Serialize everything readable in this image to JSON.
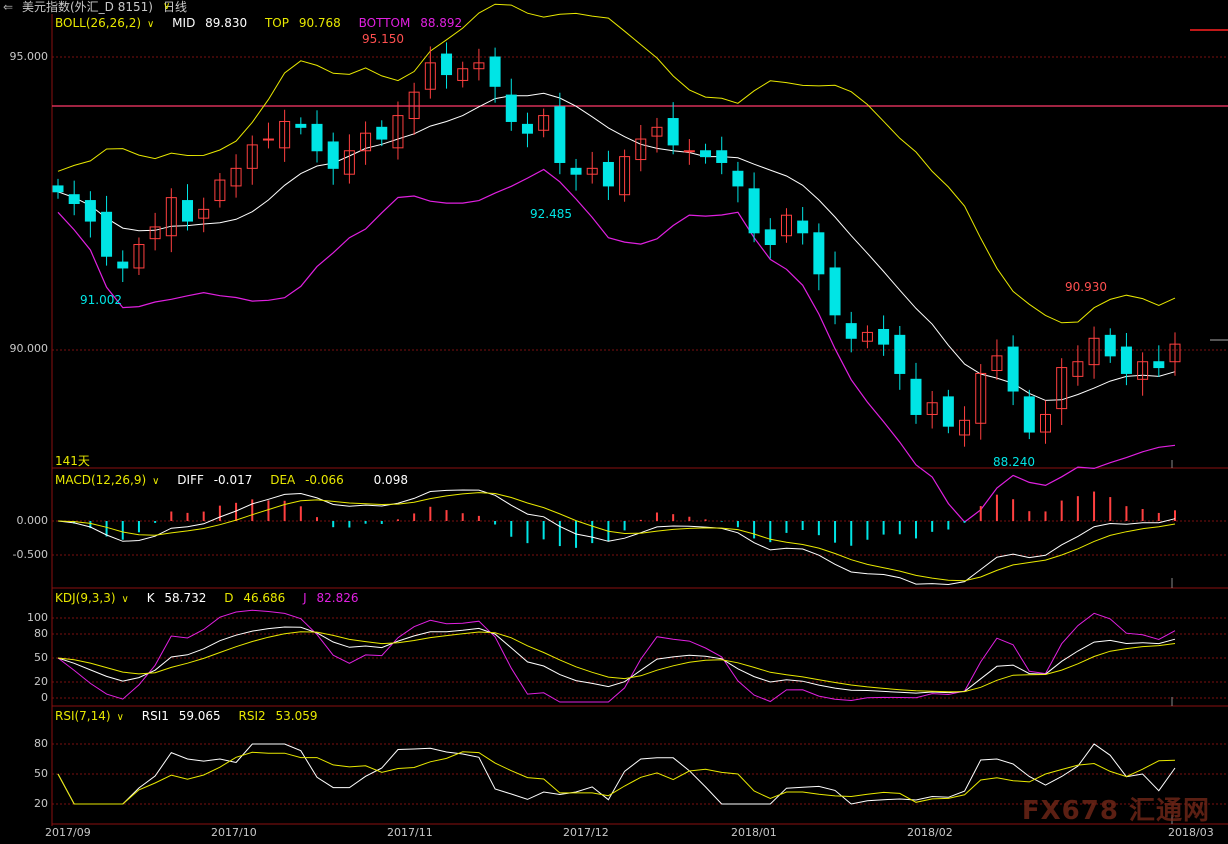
{
  "window": {
    "title_icon": "back-arrow-icon",
    "title": "美元指数(外汇_D 8151)",
    "period": "日线",
    "period_dropdown_icon": "chevron-down-icon"
  },
  "boll": {
    "label": "BOLL(26,26,2)",
    "mid_label": "MID",
    "mid_value": "89.830",
    "top_label": "TOP",
    "top_value": "90.768",
    "bottom_label": "BOTTOM",
    "bottom_value": "88.892",
    "colors": {
      "mid": "#ffffff",
      "top": "#e8e800",
      "bottom": "#e020e0"
    }
  },
  "main_axis": {
    "ticks": [
      "95.000",
      "90.000"
    ],
    "tick_values": [
      95.0,
      90.0
    ]
  },
  "annotations": {
    "high_1": "95.150",
    "low_1": "91.002",
    "low_2": "92.485",
    "low_3": "88.240",
    "high_2": "90.930",
    "days": "141天"
  },
  "macd": {
    "label": "MACD(12,26,9)",
    "diff_label": "DIFF",
    "diff_value": "-0.017",
    "dea_label": "DEA",
    "dea_value": "-0.066",
    "macd_value": "0.098",
    "ticks": [
      "0.000",
      "-0.500"
    ]
  },
  "kdj": {
    "label": "KDJ(9,3,3)",
    "k_label": "K",
    "k_value": "58.732",
    "d_label": "D",
    "d_value": "46.686",
    "j_label": "J",
    "j_value": "82.826",
    "ticks": [
      "100",
      "80",
      "50",
      "20",
      "0"
    ]
  },
  "rsi": {
    "label": "RSI(7,14)",
    "rsi1_label": "RSI1",
    "rsi1_value": "59.065",
    "rsi2_label": "RSI2",
    "rsi2_value": "53.059",
    "ticks": [
      "80",
      "50",
      "20"
    ]
  },
  "x_axis": {
    "labels": [
      "2017/09",
      "2017/10",
      "2017/11",
      "2017/12",
      "2018/01",
      "2018/02",
      "2018/03"
    ]
  },
  "watermark": "FX678 汇通网",
  "colors": {
    "up": "#ff4040",
    "down": "#00e5e5",
    "grid": "#7a1010",
    "text": "#c8c8c8"
  },
  "chart_data": {
    "type": "candlestick",
    "title": "美元指数(外汇_D 8151)",
    "xlabel": "",
    "ylabel": "",
    "ylim": [
      87.5,
      95.6
    ],
    "close_approx": [
      92.7,
      92.5,
      92.2,
      91.6,
      91.4,
      91.8,
      92.1,
      92.6,
      92.2,
      92.4,
      92.9,
      93.1,
      93.5,
      93.6,
      93.9,
      93.8,
      93.4,
      93.1,
      93.4,
      93.7,
      93.6,
      94.0,
      94.4,
      94.9,
      94.7,
      94.8,
      94.9,
      94.5,
      93.9,
      93.7,
      94.0,
      93.2,
      93.0,
      93.1,
      92.8,
      93.3,
      93.6,
      93.8,
      93.5,
      93.4,
      93.3,
      93.2,
      92.8,
      92.0,
      91.8,
      92.3,
      92.0,
      91.3,
      90.6,
      90.2,
      90.3,
      90.1,
      89.6,
      88.9,
      89.1,
      88.7,
      88.8,
      89.6,
      89.9,
      89.3,
      88.6,
      88.9,
      89.7,
      89.8,
      90.2,
      89.9,
      89.6,
      89.8,
      89.7,
      90.1
    ],
    "boll_last": {
      "mid": 89.83,
      "top": 90.768,
      "bottom": 88.892
    }
  }
}
